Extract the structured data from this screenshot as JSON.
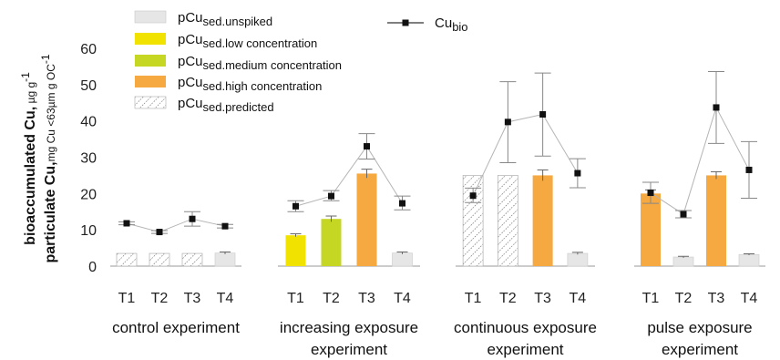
{
  "chart_data": {
    "type": "bar",
    "ylim": [
      0,
      60
    ],
    "yticks": [
      0,
      10,
      20,
      30,
      40,
      50,
      60
    ],
    "ylabel": {
      "line1_bold": "bioaccumulated Cu,",
      "line1_unit": " µg g",
      "line1_sup": "-1",
      "line2_bold": "particulate Cu,",
      "line2_unit": "mg Cu <63µm g OC",
      "line2_sup": "-1"
    },
    "legend": {
      "bar_prefix": "pCu",
      "items": [
        {
          "key": "unspiked",
          "sub": "sed.unspiked",
          "color": "#e6e6e6"
        },
        {
          "key": "low",
          "sub": "sed.low concentration",
          "color": "#f2e200"
        },
        {
          "key": "medium",
          "sub": "sed.medium concentration",
          "color": "#c5d623"
        },
        {
          "key": "high",
          "sub": "sed.high concentration",
          "color": "#f5a940"
        },
        {
          "key": "predicted",
          "sub": "sed.predicted",
          "color": "hatched"
        }
      ],
      "line_label": "Cu",
      "line_sub": "bio"
    },
    "groups": [
      {
        "label_line1": "control experiment",
        "label_line2": "",
        "ticks": [
          "T1",
          "T2",
          "T3",
          "T4"
        ],
        "bars": [
          {
            "value": 3.5,
            "kind": "predicted",
            "err": null
          },
          {
            "value": 3.5,
            "kind": "predicted",
            "err": null
          },
          {
            "value": 3.5,
            "kind": "predicted",
            "err": null
          },
          {
            "value": 3.6,
            "kind": "unspiked",
            "err": 0.3
          }
        ],
        "cubio": [
          {
            "value": 11.8,
            "low": 11.4,
            "high": 12.2
          },
          {
            "value": 9.4,
            "low": 9.0,
            "high": 9.8
          },
          {
            "value": 13.0,
            "low": 11.0,
            "high": 15.0
          },
          {
            "value": 11.0,
            "low": 10.5,
            "high": 11.5
          }
        ]
      },
      {
        "label_line1": "increasing exposure",
        "label_line2": "experiment",
        "ticks": [
          "T1",
          "T2",
          "T3",
          "T4"
        ],
        "bars": [
          {
            "value": 8.5,
            "kind": "low",
            "err": 0.4
          },
          {
            "value": 13.0,
            "kind": "medium",
            "err": 0.8
          },
          {
            "value": 25.5,
            "kind": "high",
            "err": 1.2
          },
          {
            "value": 3.6,
            "kind": "unspiked",
            "err": 0.3
          }
        ],
        "cubio": [
          {
            "value": 16.5,
            "low": 15.0,
            "high": 18.0
          },
          {
            "value": 19.3,
            "low": 18.0,
            "high": 20.8
          },
          {
            "value": 33.0,
            "low": 29.5,
            "high": 36.5
          },
          {
            "value": 17.3,
            "low": 15.5,
            "high": 19.3
          }
        ]
      },
      {
        "label_line1": "continuous exposure",
        "label_line2": "experiment",
        "ticks": [
          "T1",
          "T2",
          "T3",
          "T4"
        ],
        "bars": [
          {
            "value": 25.0,
            "kind": "predicted",
            "err": null
          },
          {
            "value": 25.0,
            "kind": "predicted",
            "err": null
          },
          {
            "value": 25.0,
            "kind": "high",
            "err": 1.5
          },
          {
            "value": 3.5,
            "kind": "unspiked",
            "err": 0.3
          }
        ],
        "cubio": [
          {
            "value": 19.4,
            "low": 17.5,
            "high": 21.5
          },
          {
            "value": 39.7,
            "low": 28.5,
            "high": 50.8
          },
          {
            "value": 41.8,
            "low": 30.3,
            "high": 53.2
          },
          {
            "value": 25.6,
            "low": 21.6,
            "high": 29.6
          }
        ]
      },
      {
        "label_line1": "pulse exposure",
        "label_line2": "experiment",
        "ticks": [
          "T1",
          "T2",
          "T3",
          "T4"
        ],
        "bars": [
          {
            "value": 20.0,
            "kind": "high",
            "err": 1.0
          },
          {
            "value": 2.5,
            "kind": "unspiked",
            "err": 0.2
          },
          {
            "value": 25.0,
            "kind": "high",
            "err": 1.0
          },
          {
            "value": 3.2,
            "kind": "unspiked",
            "err": 0.2
          }
        ],
        "cubio": [
          {
            "value": 20.2,
            "low": 17.3,
            "high": 23.1
          },
          {
            "value": 14.3,
            "low": 13.3,
            "high": 15.3
          },
          {
            "value": 43.7,
            "low": 33.8,
            "high": 53.6
          },
          {
            "value": 26.5,
            "low": 18.7,
            "high": 34.3
          }
        ]
      }
    ]
  }
}
